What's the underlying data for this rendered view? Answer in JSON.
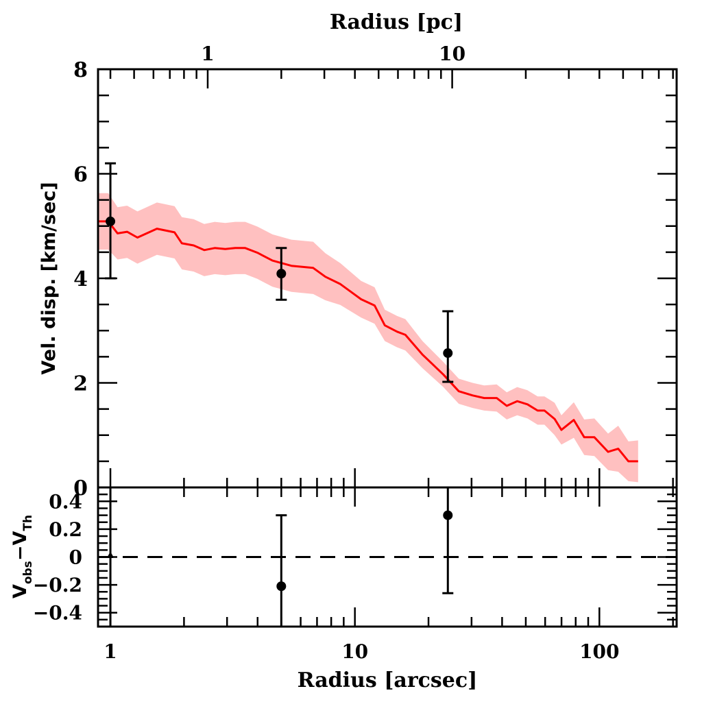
{
  "chart_data": [
    {
      "panel": "main",
      "type": "line",
      "title": "",
      "xlabel_top": "Radius [pc]",
      "xlabel": "Radius [arcsec]",
      "ylabel": "Vel. disp. [km/sec]",
      "xscale": "log",
      "xlim": [
        0.89,
        207
      ],
      "ylim": [
        0,
        8
      ],
      "x_ticks": [
        1,
        10,
        100
      ],
      "x_tick_labels": [
        "1",
        "10",
        "100"
      ],
      "top_x_ticks": [
        1,
        10
      ],
      "top_x_tick_labels": [
        "1",
        "10"
      ],
      "top_axis_pc_per_arcsec": 0.4,
      "y_ticks": [
        0,
        2,
        4,
        6,
        8
      ],
      "y_tick_labels": [
        "0",
        "2",
        "4",
        "6",
        "8"
      ],
      "grid": false,
      "series": [
        {
          "name": "model",
          "kind": "line",
          "color": "#ff0000",
          "x": [
            0.89,
            0.98,
            1.07,
            1.17,
            1.29,
            1.55,
            1.83,
            1.96,
            2.19,
            2.42,
            2.67,
            2.95,
            3.24,
            3.56,
            3.99,
            4.6,
            5.5,
            6.75,
            7.57,
            8.72,
            10.6,
            12.04,
            13.25,
            14.88,
            16.08,
            18.9,
            23.0,
            26.6,
            30.3,
            33.8,
            38.0,
            41.8,
            46.1,
            50.8,
            55.9,
            59.6,
            65.6,
            69.9,
            78.6,
            86.7,
            95.4,
            108.5,
            119.4,
            131.5,
            144.0
          ],
          "y": [
            5.09,
            5.09,
            4.86,
            4.89,
            4.78,
            4.95,
            4.88,
            4.67,
            4.63,
            4.54,
            4.58,
            4.56,
            4.58,
            4.58,
            4.49,
            4.34,
            4.24,
            4.2,
            4.03,
            3.89,
            3.6,
            3.48,
            3.1,
            2.98,
            2.92,
            2.54,
            2.16,
            1.84,
            1.76,
            1.71,
            1.71,
            1.56,
            1.65,
            1.59,
            1.47,
            1.47,
            1.31,
            1.1,
            1.29,
            0.96,
            0.96,
            0.68,
            0.74,
            0.5,
            0.5
          ]
        },
        {
          "name": "model-uncertainty-band",
          "kind": "band",
          "color": "#ffc0c0",
          "x": [
            0.89,
            0.98,
            1.07,
            1.17,
            1.29,
            1.55,
            1.83,
            1.96,
            2.19,
            2.42,
            2.67,
            2.95,
            3.24,
            3.56,
            3.99,
            4.6,
            5.5,
            6.75,
            7.57,
            8.72,
            10.6,
            12.04,
            13.25,
            14.88,
            16.08,
            18.9,
            23.0,
            26.6,
            30.3,
            33.8,
            38.0,
            41.8,
            46.1,
            50.8,
            55.9,
            59.6,
            65.6,
            69.9,
            78.6,
            86.7,
            95.4,
            108.5,
            119.4,
            131.5,
            144.0
          ],
          "y_low": [
            4.55,
            4.55,
            4.36,
            4.39,
            4.28,
            4.45,
            4.38,
            4.17,
            4.13,
            4.04,
            4.08,
            4.06,
            4.08,
            4.08,
            3.99,
            3.84,
            3.74,
            3.7,
            3.58,
            3.49,
            3.25,
            3.13,
            2.8,
            2.68,
            2.62,
            2.28,
            1.92,
            1.6,
            1.52,
            1.47,
            1.45,
            1.3,
            1.38,
            1.32,
            1.2,
            1.2,
            1.0,
            0.82,
            0.95,
            0.62,
            0.6,
            0.33,
            0.3,
            0.12,
            0.1
          ],
          "y_high": [
            5.63,
            5.63,
            5.36,
            5.39,
            5.28,
            5.45,
            5.38,
            5.17,
            5.13,
            5.04,
            5.08,
            5.06,
            5.08,
            5.08,
            4.99,
            4.84,
            4.74,
            4.7,
            4.48,
            4.29,
            3.95,
            3.83,
            3.4,
            3.28,
            3.22,
            2.8,
            2.4,
            2.08,
            2.0,
            1.95,
            1.97,
            1.82,
            1.92,
            1.86,
            1.74,
            1.74,
            1.62,
            1.38,
            1.63,
            1.3,
            1.32,
            1.03,
            1.18,
            0.88,
            0.9
          ]
        },
        {
          "name": "observed",
          "kind": "scatter-errorbar",
          "color": "#000000",
          "x": [
            1.0,
            5.0,
            24.0
          ],
          "y": [
            5.09,
            4.09,
            2.57
          ],
          "y_err_low": [
            4.0,
            3.59,
            2.02
          ],
          "y_err_high": [
            6.2,
            4.58,
            3.37
          ]
        }
      ]
    },
    {
      "panel": "residual",
      "type": "scatter",
      "xlabel": "Radius [arcsec]",
      "ylabel": "V_obs − V_Th",
      "ylabel_main": "V",
      "ylabel_sub1": "obs",
      "ylabel_minus": "−V",
      "ylabel_sub2": "Th",
      "xscale": "log",
      "xlim": [
        0.89,
        207
      ],
      "ylim": [
        -0.5,
        0.5
      ],
      "y_ticks": [
        -0.4,
        -0.2,
        0,
        0.2,
        0.4
      ],
      "y_tick_labels": [
        "−0.4",
        "−0.2",
        "0",
        "0.2",
        "0.4"
      ],
      "reference_line": {
        "y": 0,
        "style": "dashed"
      },
      "series": [
        {
          "name": "residuals",
          "color": "#000000",
          "x": [
            1.0,
            5.0,
            24.0
          ],
          "y": [
            0.0,
            -0.21,
            0.3
          ],
          "y_err_low": [
            -0.6,
            -0.6,
            -0.26
          ],
          "y_err_high": [
            0.6,
            0.3,
            0.6
          ]
        }
      ]
    }
  ]
}
